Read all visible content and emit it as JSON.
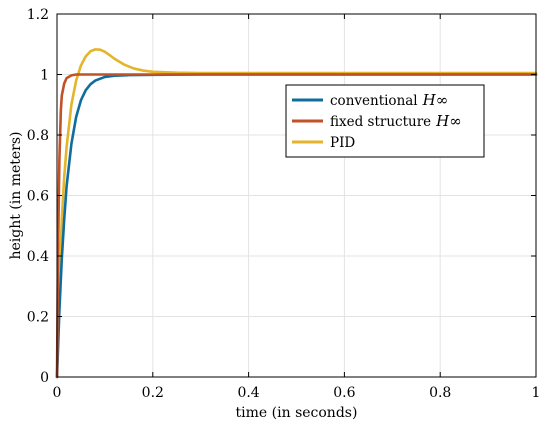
{
  "chart_data": {
    "type": "line",
    "title": "",
    "xlabel": "time (in seconds)",
    "ylabel": "height (in meters)",
    "xlim": [
      0,
      1
    ],
    "ylim": [
      0,
      1.2
    ],
    "xticks": [
      0,
      0.2,
      0.4,
      0.6,
      0.8,
      1
    ],
    "xtick_labels": [
      "0",
      "0.2",
      "0.4",
      "0.6",
      "0.8",
      "1"
    ],
    "yticks": [
      0,
      0.2,
      0.4,
      0.6,
      0.8,
      1,
      1.2
    ],
    "ytick_labels": [
      "0",
      "0.2",
      "0.4",
      "0.6",
      "0.8",
      "1",
      "1.2"
    ],
    "grid": true,
    "legend_position": "upper-right",
    "series": [
      {
        "name": "conventional",
        "legend_math": "H∞",
        "color": "#0f6d9e",
        "x": [
          0,
          0.005,
          0.01,
          0.015,
          0.02,
          0.03,
          0.04,
          0.05,
          0.06,
          0.07,
          0.08,
          0.1,
          0.12,
          0.15,
          0.2,
          0.3,
          0.5,
          1.0
        ],
        "y": [
          0,
          0.22,
          0.39,
          0.52,
          0.63,
          0.77,
          0.86,
          0.915,
          0.948,
          0.968,
          0.98,
          0.992,
          0.996,
          0.998,
          0.999,
          1.0,
          1.0,
          1.0
        ]
      },
      {
        "name": "fixed structure",
        "legend_math": "H∞",
        "color": "#c0522a",
        "x": [
          0,
          0.002,
          0.005,
          0.008,
          0.01,
          0.015,
          0.02,
          0.03,
          0.04,
          0.06,
          0.1,
          0.2,
          0.5,
          1.0
        ],
        "y": [
          0,
          0.4,
          0.72,
          0.88,
          0.93,
          0.97,
          0.988,
          0.997,
          1.0,
          1.0,
          1.0,
          1.0,
          1.0,
          1.0
        ]
      },
      {
        "name": "PID",
        "legend_math": "",
        "color": "#e4b42a",
        "x": [
          0,
          0.005,
          0.01,
          0.015,
          0.02,
          0.03,
          0.04,
          0.05,
          0.06,
          0.07,
          0.08,
          0.09,
          0.1,
          0.11,
          0.12,
          0.14,
          0.16,
          0.18,
          0.2,
          0.25,
          0.3,
          0.4,
          0.5,
          1.0
        ],
        "y": [
          0,
          0.3,
          0.52,
          0.66,
          0.76,
          0.9,
          0.98,
          1.03,
          1.06,
          1.077,
          1.083,
          1.082,
          1.075,
          1.064,
          1.052,
          1.033,
          1.02,
          1.013,
          1.009,
          1.006,
          1.005,
          1.005,
          1.005,
          1.005
        ]
      }
    ]
  }
}
